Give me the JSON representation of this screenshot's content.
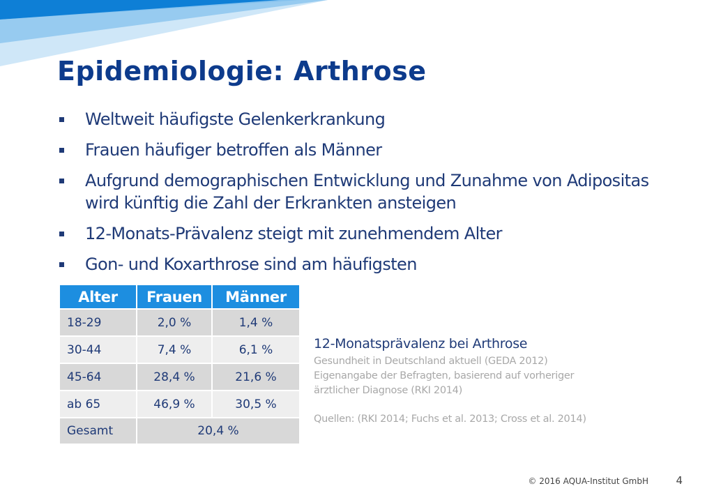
{
  "slide": {
    "title": "Epidemiologie: Arthrose",
    "bullets": [
      "Weltweit häufigste Gelenkerkrankung",
      "Frauen häufiger betroffen als Männer",
      "Aufgrund demographischen Entwicklung  und Zunahme von Adipositas wird künftig die Zahl der Erkrankten ansteigen",
      "12-Monats-Prävalenz steigt mit zunehmendem Alter",
      "Gon- und Koxarthrose sind am häufigsten"
    ]
  },
  "table": {
    "headers": [
      "Alter",
      "Frauen",
      "Männer"
    ],
    "rows": [
      [
        "18-29",
        "2,0 %",
        "1,4 %"
      ],
      [
        "30-44",
        "7,4 %",
        "6,1 %"
      ],
      [
        "45-64",
        "28,4 %",
        "21,6 %"
      ],
      [
        "ab 65",
        "46,9 %",
        "30,5 %"
      ]
    ],
    "total": {
      "label": "Gesamt",
      "value": "20,4 %"
    }
  },
  "info": {
    "title": "12-Monatsprävalenz  bei Arthrose",
    "source_lines": [
      "Gesundheit in Deutschland aktuell (GEDA 2012)",
      "Eigenangabe der Befragten, basierend auf vorheriger",
      "ärztlicher Diagnose (RKI 2014)"
    ],
    "references": "Quellen: (RKI 2014; Fuchs et al. 2013; Cross et al. 2014)"
  },
  "footer": {
    "copyright": "© 2016 AQUA-Institut GmbH",
    "page_number": "4"
  },
  "colors": {
    "title": "#0d3b8c",
    "text": "#1f3a77",
    "table_header": "#1d8ee0",
    "muted": "#a8a8a8"
  }
}
